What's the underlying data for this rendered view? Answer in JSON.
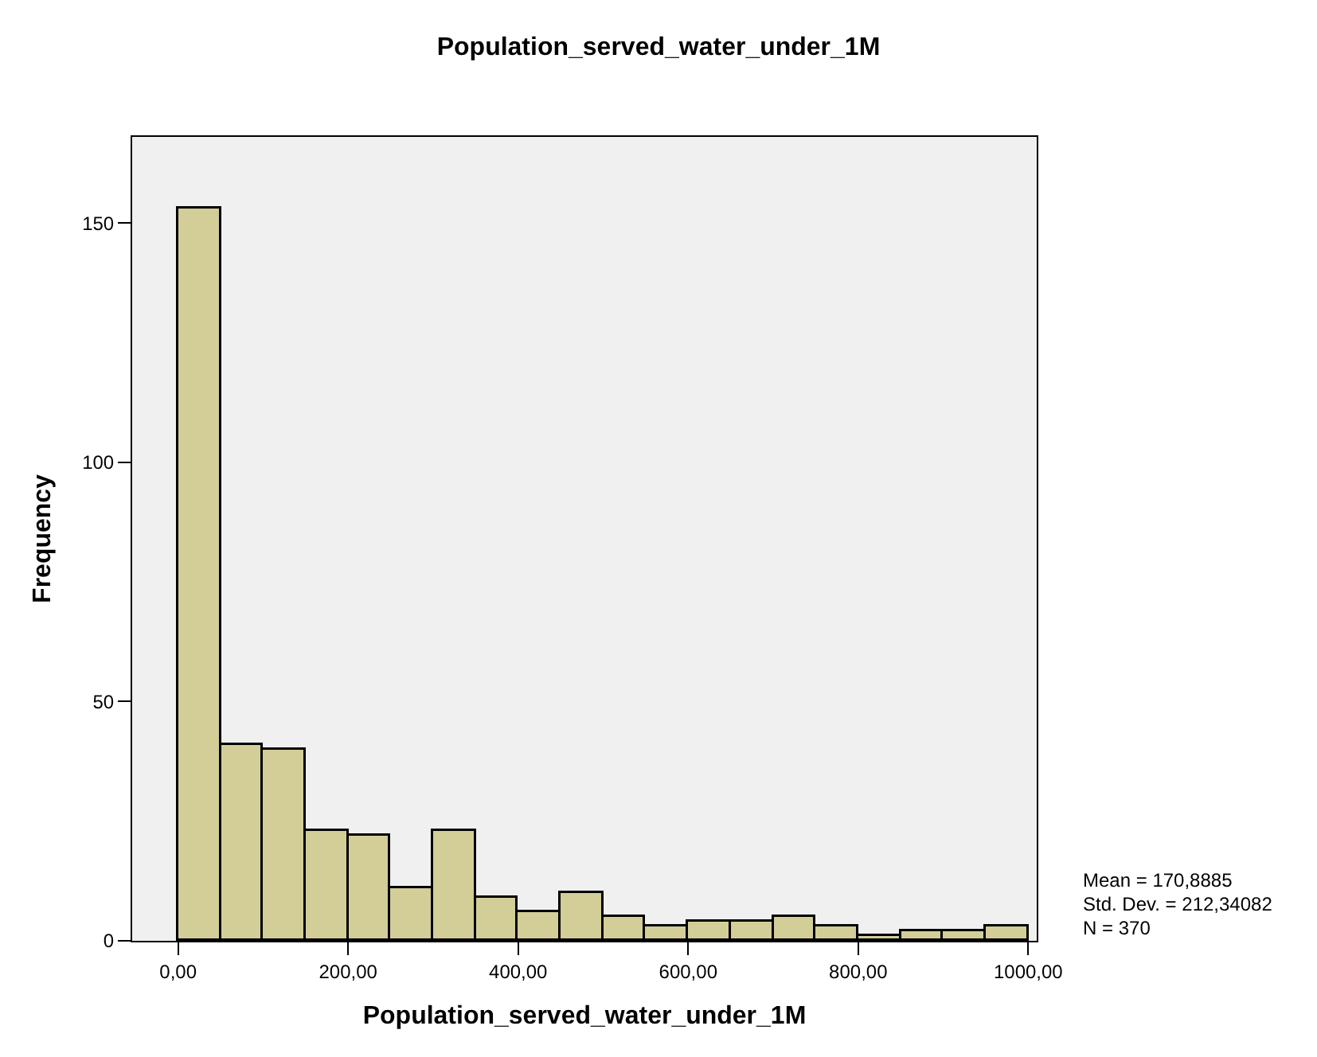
{
  "chart_data": {
    "type": "histogram",
    "title": "Population_served_water_under_1M",
    "xlabel": "Population_served_water_under_1M",
    "ylabel": "Frequency",
    "bins": [
      0,
      50,
      100,
      150,
      200,
      250,
      300,
      350,
      400,
      450,
      500,
      550,
      600,
      650,
      700,
      750,
      800,
      850,
      900,
      950,
      1000
    ],
    "values": [
      153,
      41,
      40,
      23,
      22,
      11,
      23,
      9,
      6,
      10,
      5,
      3,
      4,
      4,
      5,
      3,
      1,
      2,
      2,
      3
    ],
    "color": "#d3ce98",
    "xlim": [
      -54,
      1010
    ],
    "xticks": [
      {
        "value": 0,
        "label": "0,00"
      },
      {
        "value": 200,
        "label": "200,00"
      },
      {
        "value": 400,
        "label": "400,00"
      },
      {
        "value": 600,
        "label": "600,00"
      },
      {
        "value": 800,
        "label": "800,00"
      },
      {
        "value": 1000,
        "label": "1000,00"
      }
    ],
    "ylim": [
      0,
      168
    ],
    "yticks": [
      0,
      50,
      100,
      150
    ],
    "grid": false,
    "annotations": [
      "Mean = 170,8885",
      "Std. Dev. = 212,34082",
      "N = 370"
    ]
  }
}
